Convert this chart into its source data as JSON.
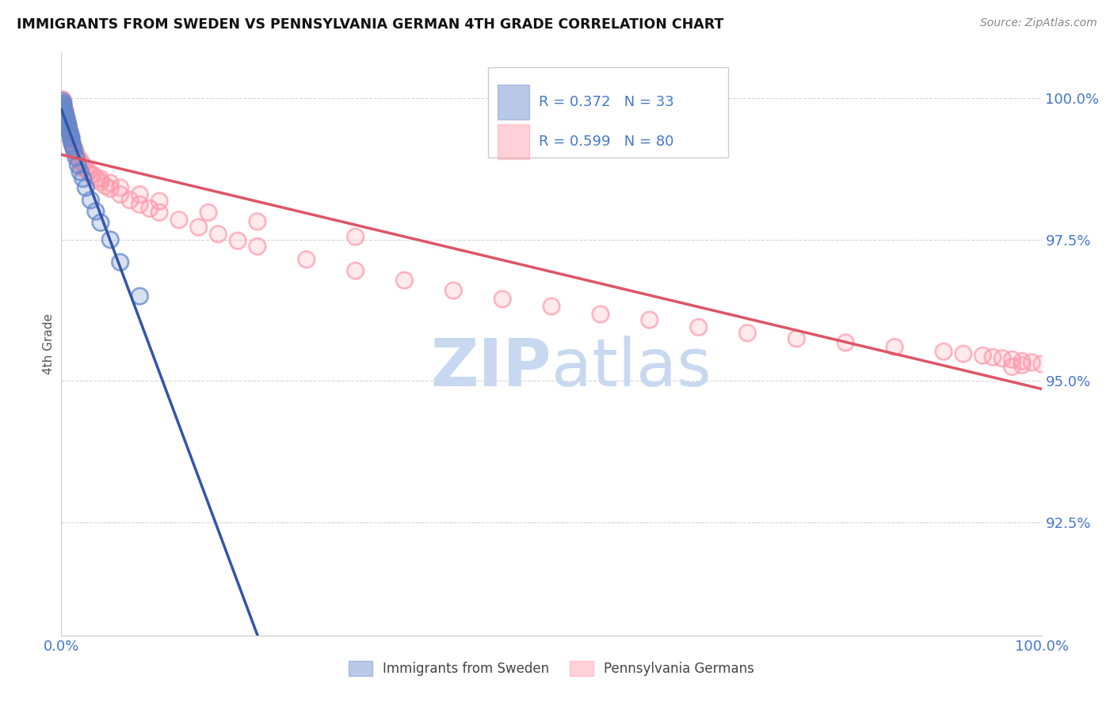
{
  "title": "IMMIGRANTS FROM SWEDEN VS PENNSYLVANIA GERMAN 4TH GRADE CORRELATION CHART",
  "source_text": "Source: ZipAtlas.com",
  "ylabel": "4th Grade",
  "xlim": [
    0.0,
    1.0
  ],
  "ylim": [
    0.905,
    1.008
  ],
  "yticks": [
    0.925,
    0.95,
    0.975,
    1.0
  ],
  "ytick_labels": [
    "92.5%",
    "95.0%",
    "97.5%",
    "100.0%"
  ],
  "xticks": [
    0.0,
    1.0
  ],
  "xtick_labels": [
    "0.0%",
    "100.0%"
  ],
  "legend_r_blue": "R = 0.372",
  "legend_n_blue": "N = 33",
  "legend_r_pink": "R = 0.599",
  "legend_n_pink": "N = 80",
  "label_blue": "Immigrants from Sweden",
  "label_pink": "Pennsylvania Germans",
  "blue_color": "#6688cc",
  "pink_color": "#ff99aa",
  "trend_blue_color": "#3355aa",
  "trend_pink_color": "#dd5566",
  "watermark_zip": "ZIP",
  "watermark_atlas": "atlas",
  "watermark_color": "#c8d8f0",
  "background_color": "#ffffff",
  "grid_color": "#bbbbbb",
  "tick_color": "#4477cc",
  "title_color": "#111111",
  "blue_x": [
    0.001,
    0.001,
    0.001,
    0.002,
    0.002,
    0.002,
    0.003,
    0.003,
    0.004,
    0.004,
    0.005,
    0.005,
    0.006,
    0.007,
    0.007,
    0.008,
    0.009,
    0.01,
    0.01,
    0.011,
    0.012,
    0.013,
    0.015,
    0.017,
    0.019,
    0.022,
    0.025,
    0.03,
    0.035,
    0.04,
    0.05,
    0.06,
    0.08
  ],
  "blue_y": [
    0.9995,
    0.999,
    0.9985,
    0.999,
    0.9985,
    0.998,
    0.9978,
    0.9975,
    0.9972,
    0.9968,
    0.9965,
    0.996,
    0.9958,
    0.9952,
    0.9948,
    0.9943,
    0.9938,
    0.9932,
    0.9928,
    0.992,
    0.9915,
    0.9908,
    0.9895,
    0.9882,
    0.987,
    0.9858,
    0.9842,
    0.982,
    0.98,
    0.978,
    0.975,
    0.971,
    0.965
  ],
  "pink_x": [
    0.001,
    0.001,
    0.002,
    0.002,
    0.003,
    0.003,
    0.004,
    0.004,
    0.005,
    0.005,
    0.006,
    0.006,
    0.007,
    0.007,
    0.008,
    0.008,
    0.009,
    0.009,
    0.01,
    0.01,
    0.011,
    0.012,
    0.013,
    0.014,
    0.015,
    0.016,
    0.018,
    0.02,
    0.022,
    0.025,
    0.028,
    0.032,
    0.036,
    0.04,
    0.045,
    0.05,
    0.06,
    0.07,
    0.08,
    0.09,
    0.1,
    0.12,
    0.14,
    0.16,
    0.18,
    0.2,
    0.25,
    0.3,
    0.35,
    0.4,
    0.45,
    0.5,
    0.55,
    0.6,
    0.65,
    0.7,
    0.75,
    0.8,
    0.85,
    0.9,
    0.92,
    0.94,
    0.95,
    0.96,
    0.97,
    0.98,
    0.99,
    1.0,
    0.98,
    0.97,
    0.02,
    0.03,
    0.04,
    0.05,
    0.06,
    0.08,
    0.1,
    0.15,
    0.2,
    0.3
  ],
  "pink_y": [
    0.9998,
    0.9992,
    0.9995,
    0.9988,
    0.9982,
    0.9975,
    0.9978,
    0.997,
    0.9968,
    0.9962,
    0.996,
    0.9955,
    0.9952,
    0.9948,
    0.9945,
    0.994,
    0.9938,
    0.9932,
    0.993,
    0.9925,
    0.992,
    0.9915,
    0.991,
    0.9908,
    0.9902,
    0.9898,
    0.9892,
    0.9888,
    0.9882,
    0.9875,
    0.987,
    0.9865,
    0.9858,
    0.9852,
    0.9845,
    0.984,
    0.983,
    0.982,
    0.9812,
    0.9805,
    0.9798,
    0.9785,
    0.9772,
    0.976,
    0.9748,
    0.9738,
    0.9715,
    0.9695,
    0.9678,
    0.966,
    0.9645,
    0.9632,
    0.9618,
    0.9608,
    0.9595,
    0.9585,
    0.9575,
    0.9568,
    0.956,
    0.9552,
    0.9548,
    0.9545,
    0.9542,
    0.954,
    0.9538,
    0.9535,
    0.9533,
    0.953,
    0.9528,
    0.9525,
    0.9878,
    0.9865,
    0.9858,
    0.985,
    0.9842,
    0.983,
    0.9818,
    0.9798,
    0.9782,
    0.9755
  ]
}
